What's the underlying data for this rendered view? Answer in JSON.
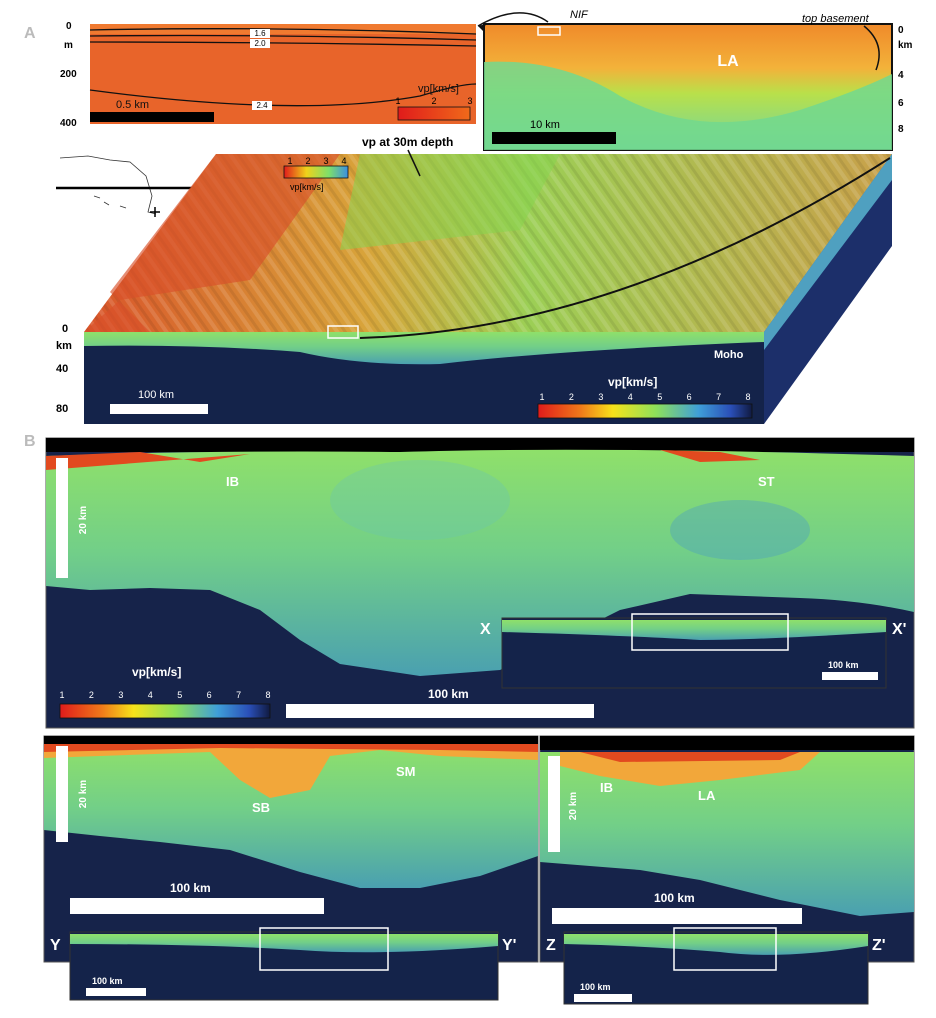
{
  "panels": {
    "a": "A",
    "b": "B"
  },
  "panel_a": {
    "top_left_inset": {
      "depth_ticks": [
        "0",
        "200",
        "400"
      ],
      "depth_unit": "m",
      "contour_labels": [
        "1.6",
        "2.0",
        "2.4"
      ],
      "scale_label": "0.5 km",
      "colorbar_title": "vp[km/s]",
      "colorbar_ticks": [
        "1",
        "2",
        "3"
      ]
    },
    "top_right_inset": {
      "nif_label": "NIF",
      "top_basement_label": "top basement",
      "la_label": "LA",
      "depth_ticks": [
        "0",
        "4",
        "6",
        "8"
      ],
      "depth_unit": "km",
      "scale_label": "10 km"
    },
    "block": {
      "surface_label": "vp at 30m depth",
      "small_colorbar_title": "vp[km/s]",
      "small_colorbar_ticks": [
        "1",
        "2",
        "3",
        "4"
      ],
      "depth_ticks": [
        "0",
        "40",
        "80"
      ],
      "depth_unit": "km",
      "moho_label": "Moho",
      "scale_label": "100 km",
      "colorbar_title": "vp[km/s]",
      "colorbar_ticks": [
        "1",
        "2",
        "3",
        "4",
        "5",
        "6",
        "7",
        "8"
      ]
    }
  },
  "panel_b": {
    "section_x": {
      "labels": [
        "IB",
        "ST"
      ],
      "vertical_scale": "20 km",
      "horizontal_scale": "100 km",
      "colorbar_title": "vp[km/s]",
      "colorbar_ticks": [
        "1",
        "2",
        "3",
        "4",
        "5",
        "6",
        "7",
        "8"
      ],
      "profile_start": "X",
      "profile_end": "X'",
      "inset_scale": "100 km"
    },
    "section_y": {
      "labels": [
        "SM",
        "SB"
      ],
      "vertical_scale": "20 km",
      "horizontal_scale": "100 km",
      "profile_start": "Y",
      "profile_end": "Y'",
      "inset_scale": "100 km"
    },
    "section_z": {
      "labels": [
        "IB",
        "LA"
      ],
      "vertical_scale": "20 km",
      "horizontal_scale": "100 km",
      "profile_start": "Z",
      "profile_end": "Z'",
      "inset_scale": "100 km"
    }
  },
  "colors": {
    "low_velocity": "#e23b1f",
    "mid_velocity": "#7ee06a",
    "high_velocity": "#3c6fd0",
    "mantle": "#14234a"
  }
}
